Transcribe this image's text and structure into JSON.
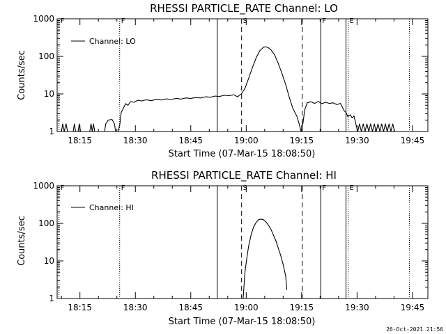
{
  "footer": {
    "timestamp": "26-Oct-2021 21:56"
  },
  "chart_data": [
    {
      "type": "line",
      "title": "RHESSI PARTICLE_RATE Channel: LO",
      "xlabel": "Start Time (07-Mar-15 18:08:50)",
      "ylabel": "Counts/sec",
      "yscale": "log",
      "ylim": [
        1,
        1000
      ],
      "xlim": [
        "18:08:50",
        "19:49:10"
      ],
      "xticks": [
        "18:15",
        "18:30",
        "18:45",
        "19:00",
        "19:15",
        "19:30",
        "19:45"
      ],
      "yticks": [
        "1",
        "10",
        "100",
        "1000"
      ],
      "legend": {
        "placement": "top-left",
        "entries": [
          "Channel: LO"
        ]
      },
      "grid": false,
      "markers": [
        {
          "time": "18:09:20",
          "style": "dotted",
          "label": "F"
        },
        {
          "time": "18:25:45",
          "style": "dotted",
          "label": "F"
        },
        {
          "time": "18:52:10",
          "style": "solid",
          "label": ""
        },
        {
          "time": "18:58:45",
          "style": "dashed",
          "label": "S"
        },
        {
          "time": "19:15:10",
          "style": "dashed",
          "label": ""
        },
        {
          "time": "19:20:10",
          "style": "solid",
          "label": "F"
        },
        {
          "time": "19:27:00",
          "style": "solid",
          "label": ""
        },
        {
          "time": "19:27:35",
          "style": "dotted",
          "label": "E"
        },
        {
          "time": "19:44:10",
          "style": "dotted",
          "label": ""
        }
      ],
      "series": [
        {
          "name": "Channel: LO",
          "points": [
            [
              "18:08:50",
              1
            ],
            [
              "18:10:00",
              1
            ],
            [
              "18:10:20",
              1.6
            ],
            [
              "18:10:45",
              1
            ],
            [
              "18:11:15",
              1.6
            ],
            [
              "18:11:40",
              1
            ],
            [
              "18:13:10",
              1
            ],
            [
              "18:13:30",
              1.6
            ],
            [
              "18:13:50",
              1
            ],
            [
              "18:14:30",
              1
            ],
            [
              "18:14:50",
              1.6
            ],
            [
              "18:15:10",
              1
            ],
            [
              "18:17:40",
              1
            ],
            [
              "18:18:00",
              1.6
            ],
            [
              "18:18:20",
              1
            ],
            [
              "18:18:40",
              1.6
            ],
            [
              "18:19:00",
              1
            ],
            [
              "18:21:40",
              1
            ],
            [
              "18:22:00",
              1.6
            ],
            [
              "18:22:40",
              2.0
            ],
            [
              "18:23:40",
              2.1
            ],
            [
              "18:24:20",
              1.6
            ],
            [
              "18:24:40",
              1
            ],
            [
              "18:25:20",
              1
            ],
            [
              "18:25:50",
              1.6
            ],
            [
              "18:26:10",
              3.2
            ],
            [
              "18:26:40",
              4.0
            ],
            [
              "18:27:20",
              5.5
            ],
            [
              "18:28:00",
              5.0
            ],
            [
              "18:28:40",
              6.2
            ],
            [
              "18:29:40",
              6.0
            ],
            [
              "18:30:40",
              6.8
            ],
            [
              "18:31:40",
              6.5
            ],
            [
              "18:33:00",
              7.0
            ],
            [
              "18:34:20",
              6.6
            ],
            [
              "18:35:40",
              7.2
            ],
            [
              "18:37:00",
              6.9
            ],
            [
              "18:38:20",
              7.4
            ],
            [
              "18:39:40",
              7.1
            ],
            [
              "18:41:00",
              7.6
            ],
            [
              "18:42:20",
              7.3
            ],
            [
              "18:43:40",
              7.8
            ],
            [
              "18:45:00",
              7.6
            ],
            [
              "18:46:20",
              8.0
            ],
            [
              "18:47:40",
              7.8
            ],
            [
              "18:49:00",
              8.4
            ],
            [
              "18:50:20",
              8.2
            ],
            [
              "18:51:40",
              8.8
            ],
            [
              "18:52:40",
              8.5
            ],
            [
              "18:54:00",
              9.2
            ],
            [
              "18:55:20",
              9.0
            ],
            [
              "18:56:40",
              9.5
            ],
            [
              "18:57:40",
              8.4
            ],
            [
              "18:58:40",
              10
            ],
            [
              "18:59:40",
              14
            ],
            [
              "19:00:40",
              26
            ],
            [
              "19:01:40",
              50
            ],
            [
              "19:02:40",
              90
            ],
            [
              "19:03:40",
              140
            ],
            [
              "19:04:40",
              175
            ],
            [
              "19:05:20",
              180
            ],
            [
              "19:06:00",
              170
            ],
            [
              "19:06:40",
              150
            ],
            [
              "19:07:40",
              110
            ],
            [
              "19:08:40",
              65
            ],
            [
              "19:09:40",
              35
            ],
            [
              "19:10:40",
              18
            ],
            [
              "19:11:40",
              8
            ],
            [
              "19:12:40",
              4
            ],
            [
              "19:13:40",
              2.6
            ],
            [
              "19:14:20",
              1.6
            ],
            [
              "19:14:50",
              1
            ],
            [
              "19:15:20",
              1.6
            ],
            [
              "19:15:50",
              3.8
            ],
            [
              "19:16:30",
              5.8
            ],
            [
              "19:17:30",
              6.2
            ],
            [
              "19:18:30",
              5.6
            ],
            [
              "19:19:30",
              6.3
            ],
            [
              "19:20:30",
              5.5
            ],
            [
              "19:21:30",
              6.0
            ],
            [
              "19:22:30",
              5.6
            ],
            [
              "19:23:30",
              5.8
            ],
            [
              "19:24:30",
              5.2
            ],
            [
              "19:25:30",
              5.6
            ],
            [
              "19:26:30",
              3.6
            ],
            [
              "19:27:00",
              3.2
            ],
            [
              "19:27:30",
              2.5
            ],
            [
              "19:28:10",
              2.8
            ],
            [
              "19:28:40",
              2.3
            ],
            [
              "19:29:10",
              2.6
            ],
            [
              "19:29:40",
              1.6
            ],
            [
              "19:30:10",
              1
            ],
            [
              "19:30:40",
              1.6
            ],
            [
              "19:31:10",
              1
            ],
            [
              "19:31:40",
              1.6
            ],
            [
              "19:32:10",
              1
            ],
            [
              "19:32:40",
              1.6
            ],
            [
              "19:33:10",
              1
            ],
            [
              "19:33:40",
              1.6
            ],
            [
              "19:34:10",
              1
            ],
            [
              "19:34:40",
              1.6
            ],
            [
              "19:35:10",
              1
            ],
            [
              "19:35:40",
              1.6
            ],
            [
              "19:36:10",
              1
            ],
            [
              "19:36:40",
              1.6
            ],
            [
              "19:37:10",
              1
            ],
            [
              "19:37:40",
              1.6
            ],
            [
              "19:38:10",
              1
            ],
            [
              "19:38:40",
              1.6
            ],
            [
              "19:39:10",
              1
            ],
            [
              "19:39:40",
              1.6
            ],
            [
              "19:40:10",
              1
            ],
            [
              "19:43:00",
              1
            ]
          ]
        }
      ]
    },
    {
      "type": "line",
      "title": "RHESSI PARTICLE_RATE Channel: HI",
      "xlabel": "Start Time (07-Mar-15 18:08:50)",
      "ylabel": "Counts/sec",
      "yscale": "log",
      "ylim": [
        1,
        1000
      ],
      "xlim": [
        "18:08:50",
        "19:49:10"
      ],
      "xticks": [
        "18:15",
        "18:30",
        "18:45",
        "19:00",
        "19:15",
        "19:30",
        "19:45"
      ],
      "yticks": [
        "1",
        "10",
        "100",
        "1000"
      ],
      "legend": {
        "placement": "top-left",
        "entries": [
          "Channel: HI"
        ]
      },
      "grid": false,
      "markers": [
        {
          "time": "18:09:20",
          "style": "dotted",
          "label": "F"
        },
        {
          "time": "18:25:45",
          "style": "dotted",
          "label": "F"
        },
        {
          "time": "18:52:10",
          "style": "solid",
          "label": ""
        },
        {
          "time": "18:58:45",
          "style": "dashed",
          "label": "S"
        },
        {
          "time": "19:15:10",
          "style": "dashed",
          "label": ""
        },
        {
          "time": "19:20:10",
          "style": "solid",
          "label": "F"
        },
        {
          "time": "19:27:00",
          "style": "solid",
          "label": ""
        },
        {
          "time": "19:27:35",
          "style": "dotted",
          "label": "E"
        },
        {
          "time": "19:44:10",
          "style": "dotted",
          "label": ""
        }
      ],
      "series": [
        {
          "name": "Channel: HI",
          "points": [
            [
              "18:59:10",
              1
            ],
            [
              "18:59:40",
              5
            ],
            [
              "19:00:10",
              12
            ],
            [
              "19:00:40",
              25
            ],
            [
              "19:01:20",
              50
            ],
            [
              "19:02:00",
              80
            ],
            [
              "19:02:40",
              105
            ],
            [
              "19:03:20",
              125
            ],
            [
              "19:04:00",
              130
            ],
            [
              "19:04:40",
              125
            ],
            [
              "19:05:20",
              110
            ],
            [
              "19:06:00",
              90
            ],
            [
              "19:06:40",
              70
            ],
            [
              "19:07:20",
              50
            ],
            [
              "19:08:00",
              35
            ],
            [
              "19:08:40",
              22
            ],
            [
              "19:09:20",
              14
            ],
            [
              "19:10:00",
              8
            ],
            [
              "19:10:40",
              4
            ],
            [
              "19:11:00",
              1.7
            ]
          ]
        }
      ]
    }
  ]
}
